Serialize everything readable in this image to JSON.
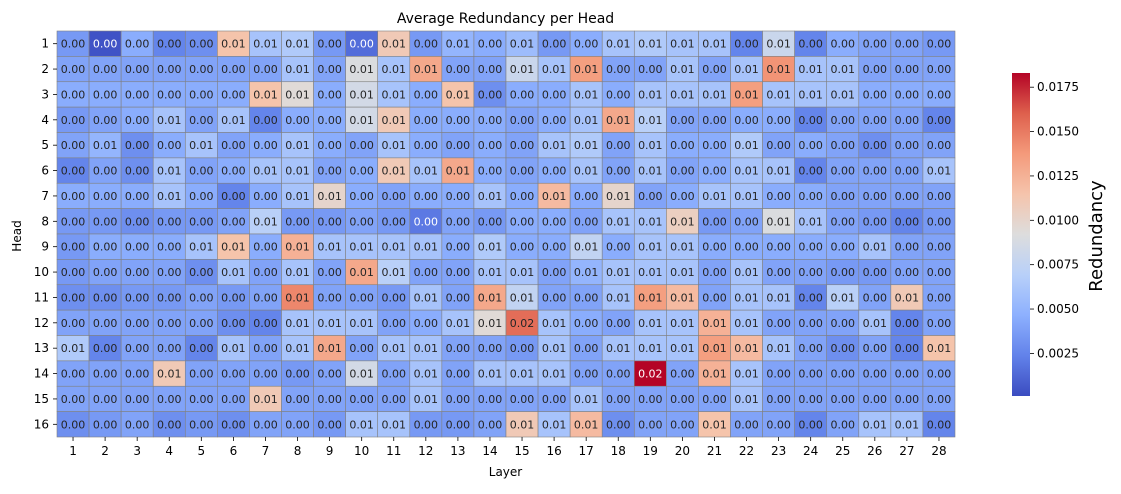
{
  "chart_data": {
    "type": "heatmap",
    "title": "Average Redundancy per Head",
    "xlabel": "Layer",
    "ylabel": "Head",
    "x_categories": [
      "1",
      "2",
      "3",
      "4",
      "5",
      "6",
      "7",
      "8",
      "9",
      "10",
      "11",
      "12",
      "13",
      "14",
      "15",
      "16",
      "17",
      "18",
      "19",
      "20",
      "21",
      "22",
      "23",
      "24",
      "25",
      "26",
      "27",
      "28"
    ],
    "y_categories": [
      "1",
      "2",
      "3",
      "4",
      "5",
      "6",
      "7",
      "8",
      "9",
      "10",
      "11",
      "12",
      "13",
      "14",
      "15",
      "16"
    ],
    "colorbar": {
      "label": "Redundancy",
      "min": 0.0001,
      "max": 0.0183,
      "ticks": [
        "0.0025",
        "0.0050",
        "0.0075",
        "0.0100",
        "0.0125",
        "0.0150",
        "0.0175"
      ],
      "colormap": "coolwarm",
      "colors": [
        "#3b4cc0",
        "#6282ea",
        "#8db0fe",
        "#b8d0f9",
        "#dddddd",
        "#f5c4ac",
        "#f49a7b",
        "#de604d",
        "#b40426"
      ]
    },
    "annotations": "rounded to 2 decimals",
    "values": [
      [
        0.0035,
        0.0004,
        0.0045,
        0.0025,
        0.003,
        0.0115,
        0.006,
        0.0065,
        0.0035,
        0.0015,
        0.011,
        0.0035,
        0.005,
        0.0045,
        0.0055,
        0.0035,
        0.0045,
        0.006,
        0.0065,
        0.006,
        0.006,
        0.0025,
        0.008,
        0.0025,
        0.0045,
        0.004,
        0.004,
        0.0035
      ],
      [
        0.004,
        0.004,
        0.004,
        0.004,
        0.004,
        0.004,
        0.004,
        0.006,
        0.004,
        0.009,
        0.006,
        0.013,
        0.004,
        0.004,
        0.008,
        0.006,
        0.0135,
        0.004,
        0.004,
        0.006,
        0.004,
        0.006,
        0.014,
        0.006,
        0.006,
        0.004,
        0.004,
        0.004
      ],
      [
        0.0045,
        0.0045,
        0.0045,
        0.0045,
        0.0045,
        0.0045,
        0.0115,
        0.0095,
        0.0045,
        0.0085,
        0.006,
        0.0045,
        0.0115,
        0.003,
        0.0045,
        0.0045,
        0.006,
        0.0045,
        0.006,
        0.006,
        0.006,
        0.0135,
        0.006,
        0.006,
        0.006,
        0.0045,
        0.0045,
        0.0045
      ],
      [
        0.0035,
        0.004,
        0.0045,
        0.006,
        0.004,
        0.006,
        0.0025,
        0.0045,
        0.0045,
        0.0085,
        0.011,
        0.0045,
        0.0045,
        0.0045,
        0.004,
        0.0045,
        0.006,
        0.013,
        0.007,
        0.004,
        0.004,
        0.0045,
        0.0045,
        0.0025,
        0.004,
        0.004,
        0.004,
        0.0025
      ],
      [
        0.004,
        0.005,
        0.003,
        0.0045,
        0.006,
        0.004,
        0.0045,
        0.006,
        0.0045,
        0.004,
        0.006,
        0.0045,
        0.004,
        0.0045,
        0.004,
        0.006,
        0.0065,
        0.004,
        0.006,
        0.0045,
        0.0045,
        0.0065,
        0.004,
        0.0045,
        0.004,
        0.003,
        0.004,
        0.004
      ],
      [
        0.0025,
        0.004,
        0.003,
        0.006,
        0.004,
        0.0045,
        0.006,
        0.006,
        0.004,
        0.0045,
        0.011,
        0.006,
        0.013,
        0.0045,
        0.004,
        0.0045,
        0.006,
        0.004,
        0.006,
        0.004,
        0.0045,
        0.006,
        0.006,
        0.0025,
        0.004,
        0.004,
        0.004,
        0.006
      ],
      [
        0.0045,
        0.0045,
        0.0045,
        0.006,
        0.0045,
        0.0025,
        0.0045,
        0.006,
        0.01,
        0.0045,
        0.004,
        0.0045,
        0.0045,
        0.006,
        0.0045,
        0.012,
        0.0045,
        0.01,
        0.004,
        0.0045,
        0.006,
        0.006,
        0.0045,
        0.0045,
        0.004,
        0.004,
        0.004,
        0.004
      ],
      [
        0.0035,
        0.0035,
        0.003,
        0.0035,
        0.0035,
        0.004,
        0.007,
        0.0035,
        0.0035,
        0.004,
        0.0035,
        0.002,
        0.004,
        0.0035,
        0.0045,
        0.0045,
        0.004,
        0.006,
        0.006,
        0.0105,
        0.0035,
        0.004,
        0.009,
        0.006,
        0.004,
        0.0035,
        0.0025,
        0.0035
      ],
      [
        0.0035,
        0.0045,
        0.0045,
        0.0045,
        0.006,
        0.0115,
        0.0045,
        0.0125,
        0.006,
        0.006,
        0.006,
        0.006,
        0.0045,
        0.0065,
        0.0045,
        0.0045,
        0.0075,
        0.0045,
        0.006,
        0.006,
        0.0045,
        0.0045,
        0.0045,
        0.0045,
        0.0045,
        0.006,
        0.004,
        0.004
      ],
      [
        0.0035,
        0.004,
        0.004,
        0.004,
        0.003,
        0.006,
        0.004,
        0.006,
        0.004,
        0.013,
        0.007,
        0.004,
        0.004,
        0.006,
        0.006,
        0.004,
        0.005,
        0.006,
        0.006,
        0.006,
        0.004,
        0.006,
        0.004,
        0.004,
        0.0035,
        0.0035,
        0.004,
        0.004
      ],
      [
        0.003,
        0.003,
        0.0035,
        0.0035,
        0.004,
        0.0035,
        0.004,
        0.0145,
        0.004,
        0.004,
        0.0035,
        0.006,
        0.004,
        0.013,
        0.0075,
        0.004,
        0.004,
        0.006,
        0.0135,
        0.012,
        0.004,
        0.006,
        0.006,
        0.0025,
        0.007,
        0.004,
        0.011,
        0.004
      ],
      [
        0.004,
        0.004,
        0.004,
        0.004,
        0.004,
        0.003,
        0.0025,
        0.006,
        0.006,
        0.006,
        0.004,
        0.0045,
        0.006,
        0.0095,
        0.0155,
        0.006,
        0.0045,
        0.004,
        0.006,
        0.006,
        0.0125,
        0.006,
        0.004,
        0.004,
        0.004,
        0.006,
        0.0025,
        0.004
      ],
      [
        0.0065,
        0.0025,
        0.004,
        0.004,
        0.0025,
        0.006,
        0.004,
        0.006,
        0.013,
        0.004,
        0.006,
        0.006,
        0.004,
        0.004,
        0.0035,
        0.006,
        0.004,
        0.006,
        0.006,
        0.006,
        0.0135,
        0.012,
        0.006,
        0.004,
        0.003,
        0.004,
        0.0025,
        0.0115
      ],
      [
        0.004,
        0.004,
        0.004,
        0.011,
        0.004,
        0.004,
        0.004,
        0.0035,
        0.004,
        0.0085,
        0.004,
        0.006,
        0.004,
        0.006,
        0.006,
        0.006,
        0.004,
        0.004,
        0.0183,
        0.004,
        0.0125,
        0.006,
        0.004,
        0.004,
        0.004,
        0.004,
        0.004,
        0.004
      ],
      [
        0.004,
        0.004,
        0.004,
        0.004,
        0.004,
        0.004,
        0.011,
        0.004,
        0.004,
        0.004,
        0.004,
        0.006,
        0.004,
        0.004,
        0.004,
        0.004,
        0.006,
        0.004,
        0.004,
        0.004,
        0.004,
        0.006,
        0.004,
        0.004,
        0.004,
        0.004,
        0.004,
        0.004
      ],
      [
        0.003,
        0.0035,
        0.004,
        0.003,
        0.0035,
        0.003,
        0.004,
        0.004,
        0.0035,
        0.006,
        0.006,
        0.0035,
        0.0035,
        0.004,
        0.011,
        0.006,
        0.012,
        0.003,
        0.004,
        0.004,
        0.0115,
        0.004,
        0.004,
        0.0025,
        0.004,
        0.006,
        0.006,
        0.0025
      ]
    ]
  }
}
